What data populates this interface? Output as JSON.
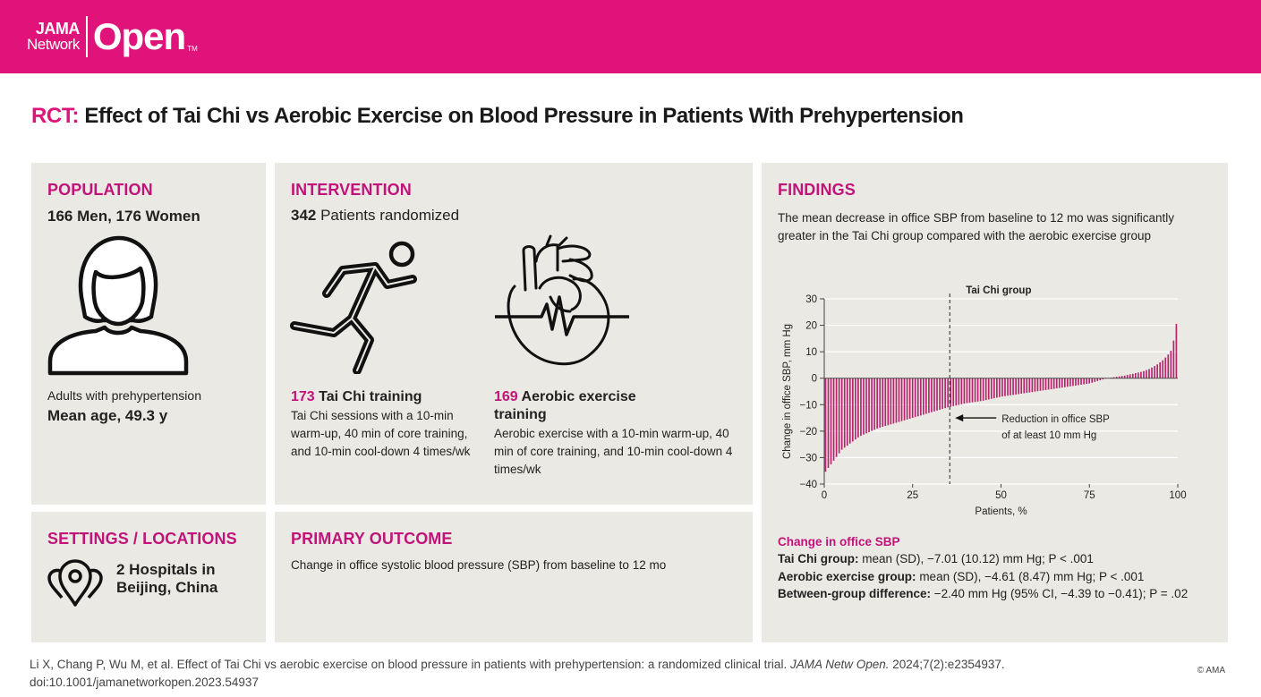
{
  "header": {
    "logo_line1": "JAMA",
    "logo_line2": "Network",
    "logo_big": "Open",
    "logo_tm": "TM",
    "brand_color": "#e0137a"
  },
  "title": {
    "prefix": "RCT:",
    "text": " Effect of Tai Chi vs Aerobic Exercise on Blood Pressure in Patients With Prehypertension"
  },
  "population": {
    "heading": "POPULATION",
    "count": "166 Men, 176 Women",
    "icon": "person-icon",
    "description": "Adults with prehypertension",
    "mean_age": "Mean age, 49.3 y"
  },
  "intervention": {
    "heading": "INTERVENTION",
    "randomized_number": "342",
    "randomized_text": " Patients randomized",
    "taichi": {
      "icon": "running-person-icon",
      "number": "173",
      "name": " Tai Chi training",
      "desc": "Tai Chi sessions with a 10-min warm-up, 40 min of core training, and 10-min cool-down 4 times/wk"
    },
    "aerobic": {
      "icon": "heart-icon",
      "number": "169",
      "name": " Aerobic exercise training",
      "desc": "Aerobic exercise with  a 10-min  warm-up, 40 min of core training, and 10-min cool-down 4 times/wk"
    }
  },
  "findings": {
    "heading": "FINDINGS",
    "summary": "The mean decrease in office SBP from baseline to 12 mo was significantly greater in the Tai Chi group compared with the aerobic exercise group",
    "change_heading": "Change in office SBP",
    "rows": [
      {
        "label": "Tai Chi group:",
        "text": "  mean (SD), −7.01 (10.12) mm Hg; P < .001"
      },
      {
        "label": "Aerobic exercise group:",
        "text": "  mean (SD), −4.61 (8.47) mm Hg; P < .001"
      },
      {
        "label": "Between-group difference:",
        "text": "  −2.40 mm Hg (95% CI, −4.39 to −0.41); P = .02"
      }
    ]
  },
  "settings": {
    "heading": "SETTINGS / LOCATIONS",
    "icon": "location-pins-icon",
    "line1": "2 Hospitals in",
    "line2": "Beijing, China"
  },
  "primary_outcome": {
    "heading": "PRIMARY OUTCOME",
    "text": "Change in office systolic blood pressure (SBP) from baseline to 12 mo"
  },
  "chart_data": {
    "type": "bar",
    "title": "",
    "series_label": "Tai Chi group",
    "xlabel": "Patients, %",
    "ylabel": "Change in office SBP, mm Hg",
    "xlim": [
      0,
      100
    ],
    "ylim": [
      -40,
      30
    ],
    "xticks": [
      "0",
      "25",
      "50",
      "75",
      "100"
    ],
    "yticks": [
      "30",
      "20",
      "10",
      "0",
      "-10",
      "-20",
      "-30",
      "-40"
    ],
    "reference_line_x": 35.5,
    "annotation": [
      "Reduction in office SBP",
      "of at least 10 mm Hg"
    ],
    "bar_color": "#b5256e",
    "x": [
      0,
      5,
      10,
      15,
      20,
      25,
      30,
      35,
      40,
      45,
      50,
      55,
      60,
      65,
      70,
      75,
      80,
      85,
      90,
      92,
      94,
      96,
      98,
      99,
      100
    ],
    "values": [
      -36,
      -27,
      -22,
      -19,
      -17,
      -15,
      -13,
      -11,
      -9.5,
      -8.5,
      -7,
      -6,
      -5,
      -4,
      -3,
      -2,
      0,
      1,
      2.5,
      3.5,
      5,
      7,
      10,
      15,
      24
    ],
    "grid": true
  },
  "footer": {
    "citation": "Li X, Chang P, Wu M, et al. Effect of Tai Chi vs aerobic exercise on blood pressure in patients with prehypertension: a randomized clinical trial.",
    "journal": "JAMA Netw Open.",
    "volume": " 2024;7(2):e2354937.",
    "doi": "doi:10.1001/jamanetworkopen.2023.54937",
    "copyright": "© AMA"
  }
}
